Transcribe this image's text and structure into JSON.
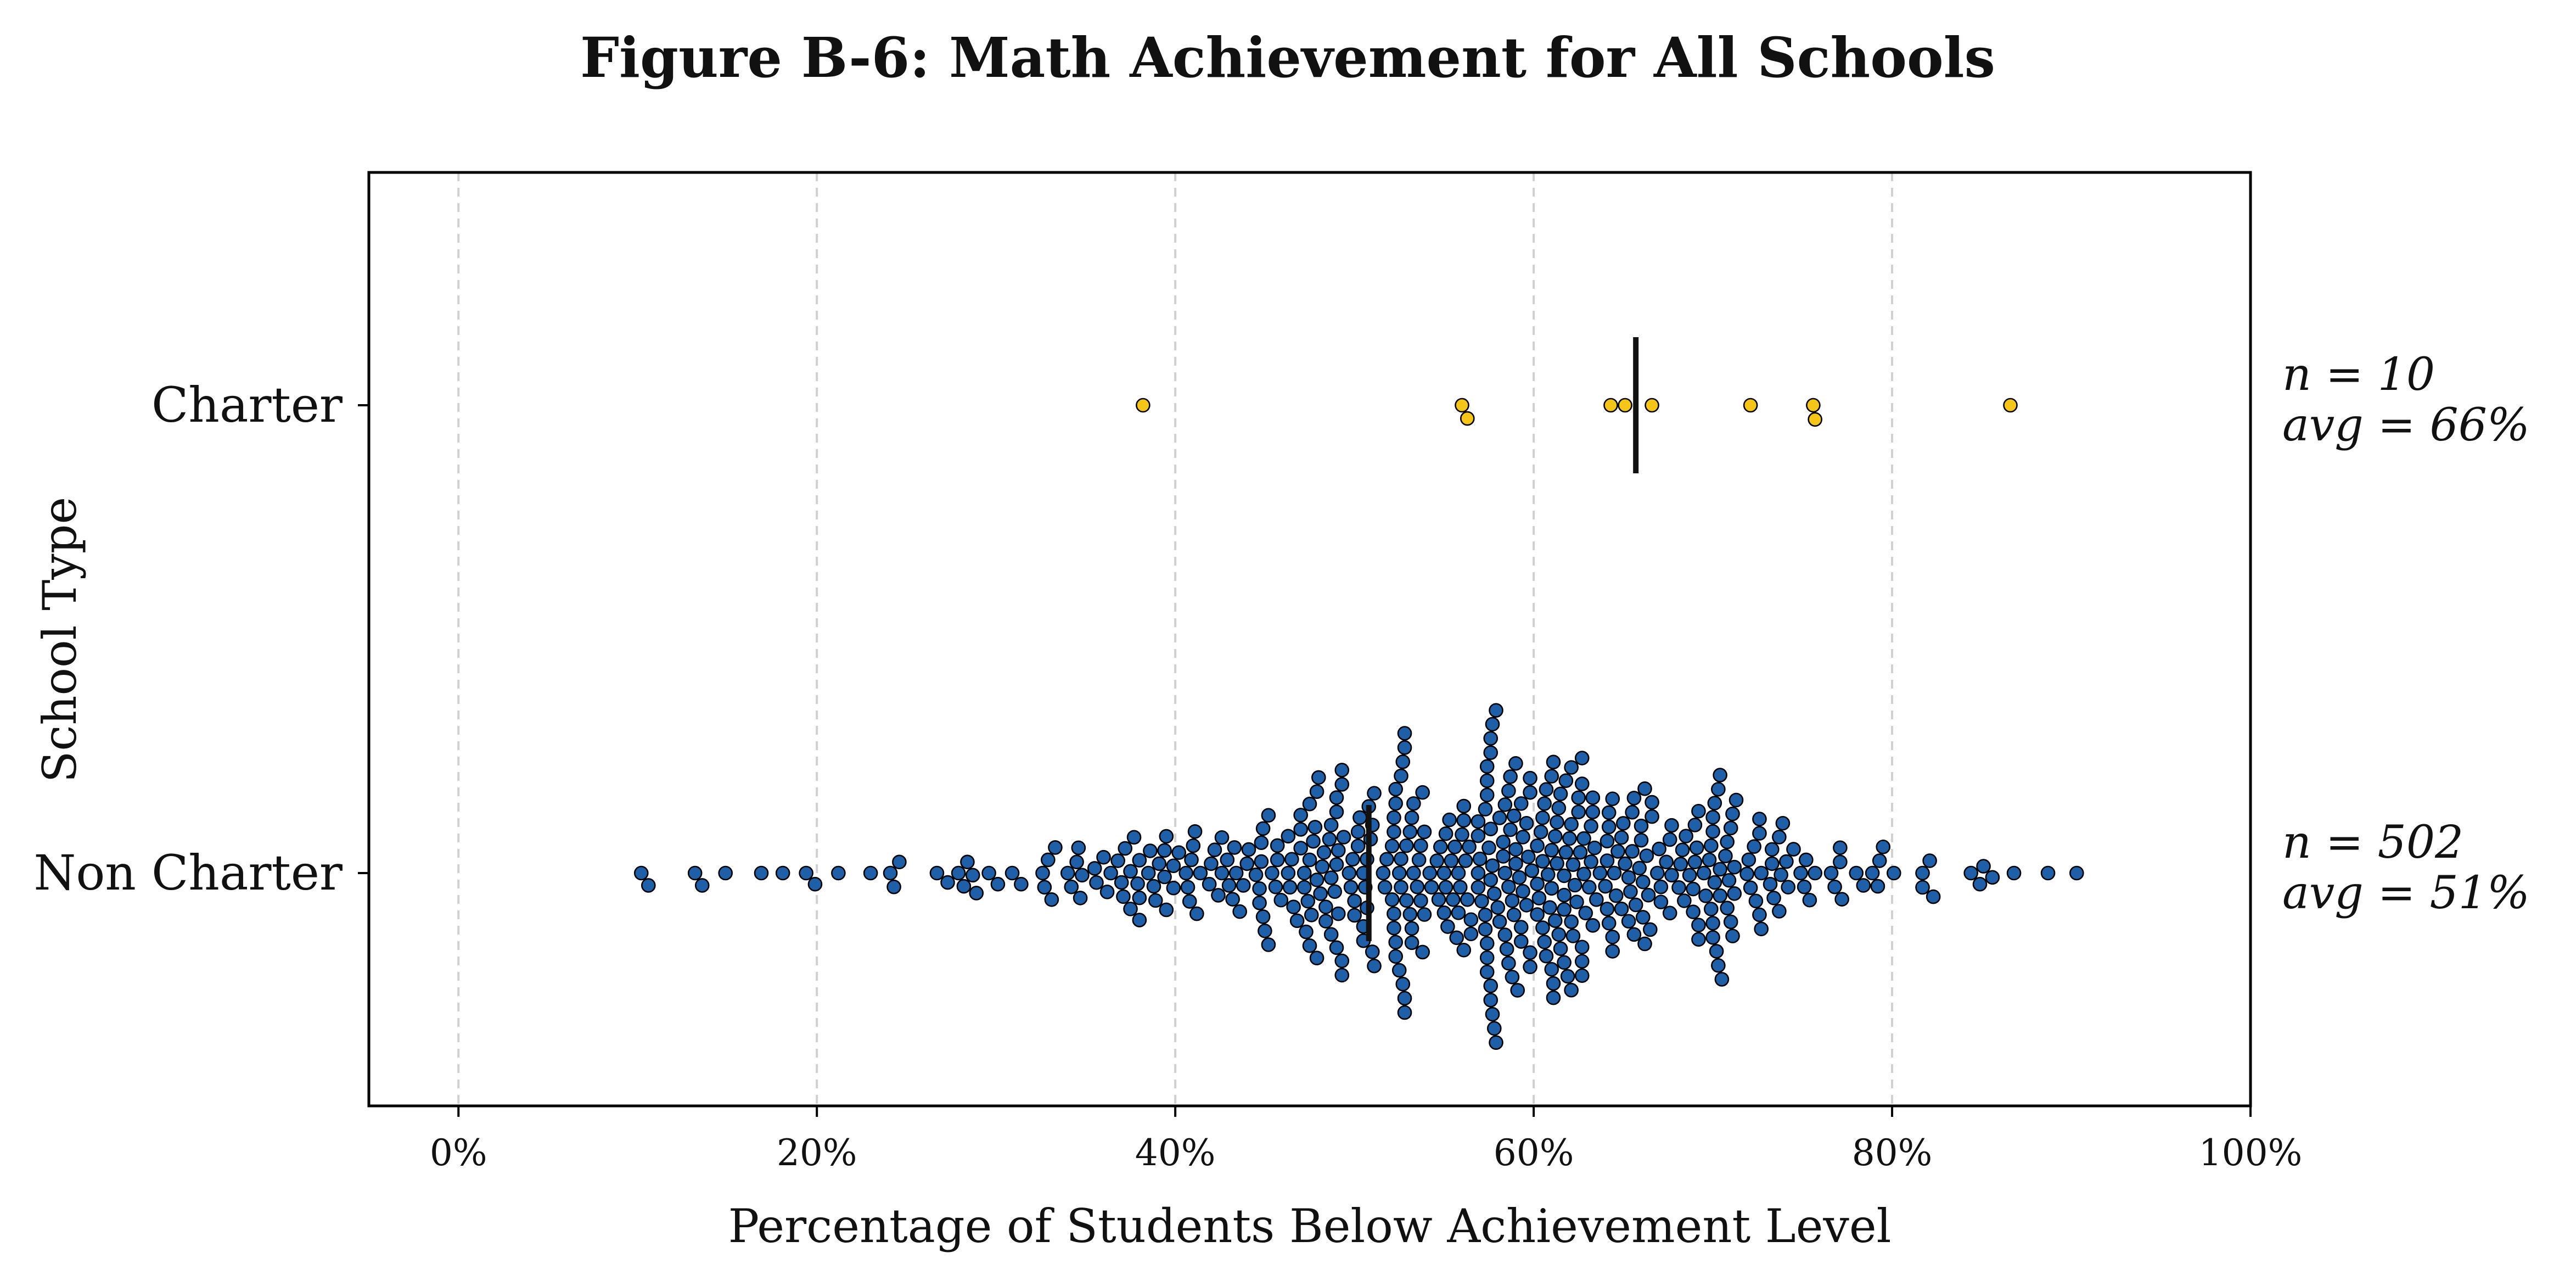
{
  "chart_data": {
    "type": "scatter",
    "subtype": "beeswarm",
    "title": "Figure B-6: Math Achievement for All Schools",
    "xlabel": "Percentage of Students Below Achievement Level",
    "ylabel": "School Type",
    "xlim": [
      -5,
      100
    ],
    "x_ticks": [
      0,
      20,
      40,
      60,
      80,
      100
    ],
    "x_tick_labels": [
      "0%",
      "20%",
      "40%",
      "60%",
      "80%",
      "100%"
    ],
    "grid": "x-dashed",
    "categories": [
      "Charter",
      "Non Charter"
    ],
    "series": [
      {
        "name": "Charter",
        "color": "#F5C518",
        "n_label": "n = 10",
        "avg_label": "avg = 66%",
        "mean": 65.7,
        "values": [
          38.2,
          56.0,
          56.3,
          64.3,
          65.1,
          66.6,
          72.1,
          75.6,
          75.7,
          86.6
        ]
      },
      {
        "name": "Non Charter",
        "color": "#1F5FA8",
        "n_label": "n = 502",
        "avg_label": "avg = 51%",
        "mean": 50.8,
        "generator": {
          "count": 502,
          "min": 10.2,
          "max": 90.3,
          "center": 57.0,
          "seed": 17
        }
      }
    ]
  }
}
